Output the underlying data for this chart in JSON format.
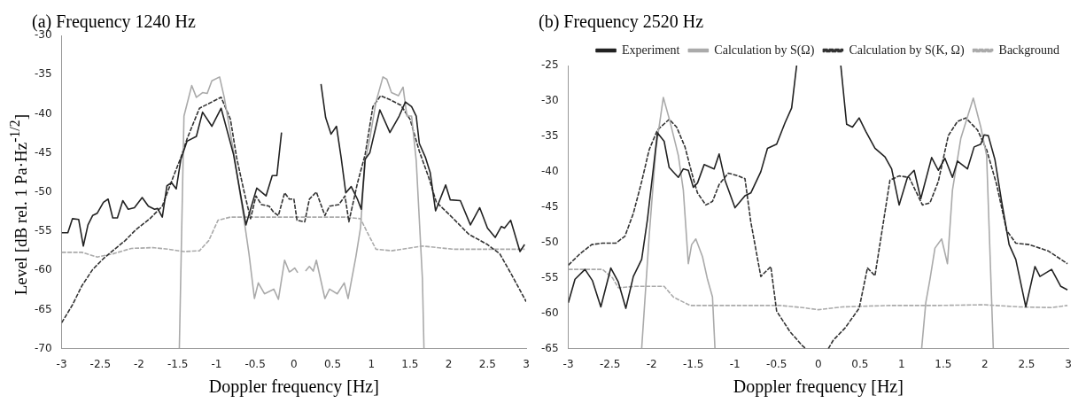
{
  "chart_data": [
    {
      "type": "line",
      "title": "(a) Frequency 1240 Hz",
      "xlabel": "Doppler frequency [Hz]",
      "ylabel": "Level [dB rel. 1 Pa·Hz$^{-1/2}$]",
      "xlim": [
        -3,
        3
      ],
      "ylim": [
        -70,
        -30
      ],
      "xticks": [
        -3,
        -2.5,
        -2,
        -1.5,
        -1,
        -0.5,
        0,
        0.5,
        1,
        1.5,
        2,
        2.5,
        3
      ],
      "yticks": [
        -30,
        -35,
        -40,
        -45,
        -50,
        -55,
        -60,
        -65,
        -70
      ],
      "legend": false,
      "marker": "none",
      "series": [
        {
          "color": "#222222",
          "line_style": "solid",
          "x": [
            -3,
            -2.92,
            -2.86,
            -2.78,
            -2.72,
            -2.66,
            -2.6,
            -2.54,
            -2.46,
            -2.4,
            -2.34,
            -2.28,
            -2.21,
            -2.14,
            -2.06,
            -1.96,
            -1.88,
            -1.8,
            -1.76,
            -1.7,
            -1.64,
            -1.58,
            -1.52,
            -1.46,
            -1.38,
            -1.26,
            -1.18,
            -1.06,
            -0.94,
            -0.78,
            -0.62,
            -0.48,
            -0.36,
            -0.28,
            -0.22,
            -0.16,
            0.1,
            0.35,
            0.41,
            0.48,
            0.55,
            0.61,
            0.67,
            0.74,
            0.82,
            0.87,
            0.92,
            0.98,
            1.11,
            1.24,
            1.36,
            1.44,
            1.52,
            1.58,
            1.62,
            1.7,
            1.76,
            1.83,
            1.96,
            2.02,
            2.15,
            2.28,
            2.4,
            2.5,
            2.6,
            2.68,
            2.72,
            2.8,
            2.92,
            2.98
          ],
          "values": [
            -55.2,
            -55.2,
            -53.4,
            -53.5,
            -56.9,
            -54.2,
            -53,
            -52.7,
            -51.3,
            -50.9,
            -53.3,
            -53.3,
            -51.1,
            -52.2,
            -52,
            -50.7,
            -51.8,
            -52.2,
            -52.1,
            -53.2,
            -49.2,
            -48.8,
            -49.6,
            -45.8,
            -43.5,
            -42.9,
            -39.8,
            -41.6,
            -39.3,
            -45.2,
            -54.2,
            -49.5,
            -50.5,
            -47.9,
            -47.9,
            -42.4,
            null,
            -36.2,
            -40.5,
            -42.6,
            -41.6,
            -45.6,
            -50.1,
            -49.3,
            -50.9,
            -52.2,
            -45.8,
            -45,
            -39.5,
            -42.4,
            -40.3,
            -38.5,
            -39.1,
            -40.3,
            -43.8,
            -45.6,
            -47.5,
            -52.4,
            -49.1,
            -51,
            -51.1,
            -54.2,
            -52,
            -54.6,
            -55.8,
            -54.4,
            -54.6,
            -53.6,
            -57.6,
            -56.7
          ]
        },
        {
          "color": "#aaaaaa",
          "line_style": "solid",
          "x": [
            -1.48,
            -1.42,
            -1.32,
            -1.26,
            -1.18,
            -1.12,
            -1.06,
            -0.96,
            -0.9,
            -0.78,
            -0.64,
            -0.58,
            -0.51,
            -0.46,
            -0.38,
            -0.26,
            -0.2,
            -0.12,
            -0.06,
            -0.04,
            0.01,
            0.05,
            0.1,
            0.15,
            0.2,
            0.25,
            0.29,
            0.4,
            0.46,
            0.56,
            0.65,
            0.7,
            0.8,
            0.86,
            0.92,
            0.98,
            1.06,
            1.15,
            1.2,
            1.26,
            1.35,
            1.41,
            1.46,
            1.52,
            1.58,
            1.66,
            1.68
          ],
          "values": [
            -70,
            -40.3,
            -36.4,
            -37.9,
            -37.3,
            -37.4,
            -35.8,
            -35.3,
            -37.9,
            -44.8,
            -53.8,
            -57.9,
            -63.6,
            -61.6,
            -63,
            -62.4,
            -63.7,
            -58.7,
            -60.2,
            -60.1,
            -59.7,
            -60.3,
            null,
            -60.1,
            -59.5,
            -60.1,
            -58.7,
            -63.6,
            -62.4,
            -63,
            -61.6,
            -63.6,
            -58.3,
            -54.6,
            -46,
            -43.2,
            -38.5,
            -35.3,
            -35.6,
            -37.3,
            -37.7,
            -36.6,
            -40.3,
            -40.3,
            -46,
            -61.1,
            -70
          ]
        },
        {
          "color": "#333333",
          "line_style": "dashed",
          "x": [
            -3,
            -2.86,
            -2.74,
            -2.6,
            -2.46,
            -2.34,
            -2.18,
            -2.04,
            -1.86,
            -1.7,
            -1.56,
            -1.46,
            -1.38,
            -1.22,
            -1.06,
            -0.94,
            -0.82,
            -0.74,
            -0.64,
            -0.56,
            -0.49,
            -0.42,
            -0.32,
            -0.26,
            -0.2,
            -0.12,
            -0.06,
            0,
            0.04,
            0.14,
            0.2,
            0.29,
            0.4,
            0.46,
            0.58,
            0.66,
            0.71,
            0.82,
            0.92,
            1.02,
            1.12,
            1.26,
            1.38,
            1.5,
            1.62,
            1.74,
            1.84,
            2.02,
            2.26,
            2.5,
            2.66,
            2.82,
            3
          ],
          "values": [
            -66.7,
            -64.4,
            -62,
            -59.9,
            -58.5,
            -57.5,
            -56.2,
            -54.8,
            -53.4,
            -51.8,
            -48.1,
            -45.6,
            -43.2,
            -39.3,
            -38.5,
            -37.9,
            -40.7,
            -45.6,
            -50.1,
            -53.4,
            -50.5,
            -51.6,
            -51.8,
            -52.6,
            -53,
            -50.1,
            -50.9,
            -50.9,
            -53.6,
            -53.8,
            -50.9,
            -50,
            -53,
            -51.8,
            -51.6,
            -50.5,
            -53.8,
            -48.9,
            -45.2,
            -39.1,
            -37.7,
            -38.3,
            -38.9,
            -40.7,
            -44.8,
            -48.1,
            -51.3,
            -53,
            -55.4,
            -56.7,
            -57.9,
            -60.7,
            -64
          ]
        },
        {
          "color": "#aaaaaa",
          "line_style": "dashed",
          "x": [
            -3,
            -2.74,
            -2.54,
            -2.34,
            -2.1,
            -1.82,
            -1.62,
            -1.42,
            -1.22,
            -1.1,
            -0.98,
            -0.82,
            -0.34,
            0.34,
            0.66,
            0.86,
            0.94,
            1.06,
            1.26,
            1.66,
            2.06,
            2.46,
            2.98
          ],
          "values": [
            -57.7,
            -57.7,
            -58.3,
            -57.9,
            -57.2,
            -57.1,
            -57.3,
            -57.6,
            -57.5,
            -56.2,
            -53.6,
            -53.2,
            -53.2,
            -53.2,
            -53.2,
            -53.4,
            -55,
            -57.3,
            -57.5,
            -56.9,
            -57.3,
            -57.3,
            -57.3
          ]
        }
      ]
    },
    {
      "type": "line",
      "title": "(b) Frequency 2520 Hz",
      "xlabel": "Doppler frequency [Hz]",
      "xlim": [
        -3,
        3
      ],
      "ylim": [
        -65,
        -25
      ],
      "xticks": [
        -3,
        -2.5,
        -2,
        -1.5,
        -1,
        -0.5,
        0,
        0.5,
        1,
        1.5,
        2,
        2.5,
        3
      ],
      "yticks": [
        -25,
        -30,
        -35,
        -40,
        -45,
        -50,
        -55,
        -60,
        -65
      ],
      "legend": "top right",
      "marker": "none",
      "series": [
        {
          "name": "Experiment",
          "color": "#222222",
          "line_style": "solid",
          "x": [
            -3,
            -2.92,
            -2.8,
            -2.71,
            -2.61,
            -2.49,
            -2.4,
            -2.31,
            -2.22,
            -2.12,
            -2.05,
            -1.93,
            -1.85,
            -1.79,
            -1.68,
            -1.62,
            -1.56,
            -1.5,
            -1.45,
            -1.37,
            -1.25,
            -1.19,
            -1.12,
            -1,
            -0.88,
            -0.81,
            -0.69,
            -0.61,
            -0.5,
            -0.4,
            -0.32,
            -0.26,
            0,
            0.27,
            0.34,
            0.41,
            0.49,
            0.57,
            0.68,
            0.8,
            0.88,
            0.97,
            1.07,
            1.15,
            1.23,
            1.36,
            1.44,
            1.52,
            1.61,
            1.67,
            1.79,
            1.87,
            1.95,
            1.99,
            2.04,
            2.12,
            2.2,
            2.29,
            2.37,
            2.49,
            2.6,
            2.66,
            2.8,
            2.91,
            2.99
          ],
          "values": [
            -58.5,
            -55.2,
            -53.8,
            -55.4,
            -59.1,
            -53.6,
            -55.6,
            -59.3,
            -54.8,
            -52.4,
            -46.7,
            -34.5,
            -35.7,
            -39.4,
            -40.8,
            -39.6,
            -39.8,
            -42.2,
            -41.6,
            -39,
            -39.6,
            -37.5,
            -41.2,
            -45.1,
            -43.4,
            -43,
            -40,
            -36.7,
            -36.1,
            -33.1,
            -31,
            -25,
            null,
            -25,
            -33.3,
            -33.7,
            -32.4,
            -34.3,
            -36.7,
            -37.9,
            -39.6,
            -44.7,
            -40.8,
            -39.8,
            -43.8,
            -38,
            -39.8,
            -38.1,
            -40.8,
            -38.5,
            -39.6,
            -36.5,
            -36.1,
            -34.8,
            -34.9,
            -38.3,
            -44.2,
            -50.3,
            -52.4,
            -59.1,
            -53.4,
            -54.8,
            -53.8,
            -56.2,
            -56.7
          ]
        },
        {
          "name": "Calculation by S(Ω)",
          "color": "#aaaaaa",
          "line_style": "solid",
          "x": [
            -2.12,
            -2.03,
            -1.95,
            -1.86,
            -1.78,
            -1.68,
            -1.62,
            -1.56,
            -1.52,
            -1.47,
            -1.39,
            -1.33,
            -1.27,
            -1.24,
            0,
            1.24,
            1.29,
            1.34,
            1.4,
            1.48,
            1.55,
            1.61,
            1.71,
            1.86,
            1.95,
            2.02,
            2.1
          ],
          "values": [
            -65,
            -49.1,
            -36.9,
            -29.5,
            -32.9,
            -37.7,
            -42.6,
            -53,
            -50.3,
            -49.5,
            -52,
            -55.2,
            -57.7,
            -65,
            null,
            -65,
            -58.5,
            -55.2,
            -50.8,
            -49.5,
            -53,
            -42.6,
            -35.3,
            -29.6,
            -33.7,
            -37.7,
            -65
          ]
        },
        {
          "name": "Calculation by S(K, Ω)",
          "color": "#333333",
          "line_style": "dashed",
          "x": [
            -3,
            -2.86,
            -2.72,
            -2.59,
            -2.43,
            -2.32,
            -2.22,
            -2.12,
            -2.03,
            -1.93,
            -1.79,
            -1.7,
            -1.6,
            -1.5,
            -1.45,
            -1.35,
            -1.27,
            -1.19,
            -1.08,
            -0.96,
            -0.88,
            -0.81,
            -0.69,
            -0.57,
            -0.5,
            -0.34,
            -0.19,
            -0.15,
            0,
            0.12,
            0.18,
            0.32,
            0.49,
            0.59,
            0.68,
            0.86,
            0.97,
            1.09,
            1.25,
            1.34,
            1.44,
            1.56,
            1.67,
            1.77,
            1.91,
            2.02,
            2.14,
            2.26,
            2.37,
            2.53,
            2.76,
            2.99
          ],
          "values": [
            -53.2,
            -51.6,
            -50.3,
            -50.1,
            -50.1,
            -49.1,
            -45.9,
            -41.4,
            -36.9,
            -34.1,
            -32.6,
            -33.7,
            -36.5,
            -41,
            -43,
            -44.7,
            -44.2,
            -41.8,
            -40.2,
            -40.6,
            -41,
            -47.1,
            -54.8,
            -53.4,
            -59.7,
            -62.6,
            -64.6,
            -65,
            null,
            -65,
            -63.8,
            -62.1,
            -59.3,
            -53.6,
            -54.7,
            -41.2,
            -40.6,
            -40.8,
            -44.7,
            -44.4,
            -41.4,
            -34.9,
            -32.9,
            -32.4,
            -34.1,
            -36.9,
            -41.8,
            -48.3,
            -50.1,
            -50.3,
            -51.2,
            -53
          ]
        },
        {
          "name": "Background",
          "color": "#aaaaaa",
          "line_style": "dashed",
          "x": [
            -3,
            -2.59,
            -2.47,
            -2.4,
            -2.2,
            -1.85,
            -1.74,
            -1.54,
            -1.04,
            -0.46,
            -0.19,
            0,
            0.29,
            0.86,
            1.44,
            1.99,
            2.41,
            2.8,
            2.99
          ],
          "values": [
            -53.8,
            -53.8,
            -55,
            -56.4,
            -56.2,
            -56.2,
            -57.7,
            -58.9,
            -58.9,
            -58.9,
            -59.2,
            -59.5,
            -59.1,
            -58.9,
            -58.9,
            -58.8,
            -59.1,
            -59.2,
            -58.9
          ]
        }
      ]
    }
  ]
}
